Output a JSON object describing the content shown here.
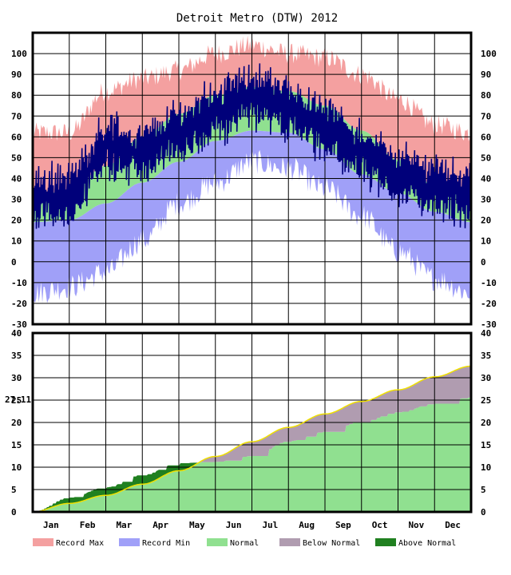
{
  "chart_data": {
    "type": "area",
    "title": "Detroit Metro (DTW) 2012",
    "colors": {
      "record_max": "#f4a0a0",
      "record_min": "#a0a0f8",
      "normal": "#90e090",
      "below_normal": "#b09cb0",
      "above_normal": "#208020",
      "actual_temp_line": "#00007a",
      "normal_precip_line": "#f0e000"
    },
    "x_tick_labels": [
      "Jan",
      "Feb",
      "Mar",
      "Apr",
      "May",
      "Jun",
      "Jul",
      "Aug",
      "Sep",
      "Oct",
      "Nov",
      "Dec"
    ],
    "temperature_panel": {
      "y_tick_labels": [
        "100",
        "90",
        "80",
        "70",
        "60",
        "50",
        "40",
        "30",
        "20",
        "10",
        "0",
        "-10",
        "-20",
        "-30"
      ],
      "ylim": [
        -30,
        110
      ],
      "grid": true,
      "monthly_anchor_values": {
        "record_max": [
          62,
          62,
          82,
          88,
          92,
          100,
          104,
          100,
          98,
          90,
          78,
          66,
          62
        ],
        "normal_high": [
          32,
          34,
          46,
          60,
          71,
          80,
          84,
          82,
          75,
          63,
          49,
          37,
          32
        ],
        "normal_low": [
          19,
          20,
          28,
          38,
          48,
          58,
          63,
          62,
          54,
          42,
          33,
          24,
          19
        ],
        "record_min": [
          -15,
          -12,
          -5,
          10,
          28,
          38,
          48,
          45,
          35,
          22,
          5,
          -8,
          -15
        ],
        "actual_2012_mid": [
          30,
          32,
          55,
          52,
          62,
          72,
          80,
          74,
          64,
          52,
          42,
          36,
          32
        ]
      }
    },
    "precipitation_panel": {
      "y_tick_labels": [
        "40",
        "35",
        "30",
        "25",
        "20",
        "15",
        "10",
        "5",
        "0"
      ],
      "ylim": [
        0,
        40
      ],
      "grid": true,
      "annotation": "27.11",
      "cumulative_normal": [
        0,
        1.9,
        3.7,
        6.2,
        9.2,
        12.4,
        15.7,
        18.9,
        21.9,
        24.7,
        27.3,
        30.2,
        32.6,
        34.5
      ],
      "cumulative_actual": [
        0,
        3.2,
        5.5,
        8.3,
        10.9,
        11.2,
        12.5,
        15.8,
        17.9,
        20.2,
        22.3,
        24.2,
        25.6,
        27.11
      ]
    },
    "legend": {
      "placement": "bottom",
      "entries": [
        "Record Max",
        "Record Min",
        "Normal",
        "Below Normal",
        "Above Normal"
      ]
    }
  }
}
